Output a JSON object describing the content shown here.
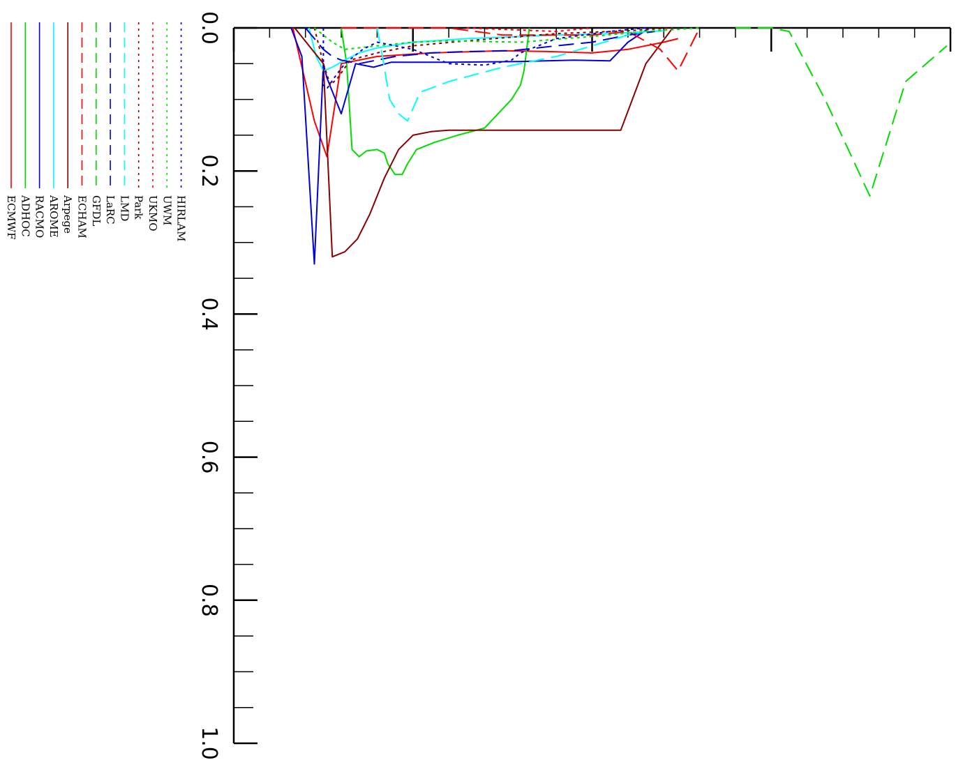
{
  "chart_data": {
    "type": "line",
    "title": "",
    "xlabel": "",
    "ylabel": "",
    "ylim": [
      0,
      1
    ],
    "xlim": [
      0,
      4
    ],
    "yticks": [
      {
        "value": 0.0,
        "label": "0.0"
      },
      {
        "value": 0.2,
        "label": "0.2"
      },
      {
        "value": 0.4,
        "label": "0.4"
      },
      {
        "value": 0.6,
        "label": "0.6"
      },
      {
        "value": 0.8,
        "label": "0.8"
      },
      {
        "value": 1.0,
        "label": "1.0"
      }
    ],
    "xticks_major": [
      0,
      1,
      2,
      3,
      4
    ],
    "grid": false,
    "legend_position": "left",
    "series": [
      {
        "name": "ECMWF",
        "color": "#ff0000",
        "dash": "solid",
        "x": [
          0.33,
          0.45,
          0.52,
          0.6,
          0.8,
          1.1,
          1.5,
          1.75,
          2.0,
          2.2,
          2.4,
          2.48
        ],
        "y": [
          0.0,
          0.13,
          0.18,
          0.05,
          0.04,
          0.035,
          0.032,
          0.033,
          0.035,
          0.03,
          0.02,
          0.015
        ]
      },
      {
        "name": "ADHOC",
        "color": "#00dd00",
        "dash": "solid",
        "x": [
          0.6,
          0.63,
          0.66,
          0.7,
          0.74,
          0.8,
          0.84,
          0.86,
          0.9,
          0.94,
          0.97,
          1.02,
          1.12,
          1.25,
          1.4,
          1.55,
          1.6,
          1.62,
          1.65
        ],
        "y": [
          0.0,
          0.05,
          0.17,
          0.18,
          0.172,
          0.17,
          0.175,
          0.19,
          0.205,
          0.205,
          0.19,
          0.17,
          0.16,
          0.15,
          0.14,
          0.1,
          0.08,
          0.06,
          0.0
        ]
      },
      {
        "name": "RACMO",
        "color": "#0000dd",
        "dash": "solid",
        "x": [
          0.32,
          0.38,
          0.45,
          0.5,
          0.52,
          0.6,
          0.68,
          0.78,
          0.88,
          1.2,
          1.6,
          1.9,
          2.1,
          2.2,
          2.32
        ],
        "y": [
          0.0,
          0.04,
          0.33,
          0.05,
          0.07,
          0.12,
          0.05,
          0.055,
          0.048,
          0.048,
          0.047,
          0.045,
          0.046,
          0.02,
          0.0
        ]
      },
      {
        "name": "AROME",
        "color": "#00ffff",
        "dash": "solid",
        "x": [
          0.42,
          0.46,
          0.5,
          0.55,
          0.62,
          0.7,
          0.8,
          1.0,
          1.3,
          1.8,
          2.1,
          2.4
        ],
        "y": [
          0.0,
          0.04,
          0.06,
          0.055,
          0.045,
          0.035,
          0.028,
          0.02,
          0.015,
          0.01,
          0.008,
          0.004
        ]
      },
      {
        "name": "Arpege",
        "color": "#880000",
        "dash": "solid",
        "x": [
          0.34,
          0.5,
          0.55,
          0.62,
          0.69,
          0.76,
          0.84,
          0.92,
          1.0,
          1.1,
          1.2,
          1.5,
          1.8,
          2.16,
          2.3,
          2.45
        ],
        "y": [
          0.0,
          0.05,
          0.32,
          0.313,
          0.295,
          0.26,
          0.21,
          0.17,
          0.15,
          0.145,
          0.143,
          0.143,
          0.143,
          0.143,
          0.05,
          0.0
        ]
      },
      {
        "name": "ECHAM",
        "color": "#ff0000",
        "dash": "dash",
        "x": [
          0.6,
          1.2,
          1.5,
          2.0,
          2.2,
          2.38,
          2.48,
          2.6
        ],
        "y": [
          0.0,
          0.0,
          0.01,
          0.01,
          0.005,
          0.03,
          0.06,
          0.0
        ]
      },
      {
        "name": "GFDL",
        "color": "#00dd00",
        "dash": "dash",
        "x": [
          2.8,
          3.0,
          3.1,
          3.3,
          3.55,
          3.75,
          3.98
        ],
        "y": [
          0.0,
          0.0,
          0.005,
          0.1,
          0.235,
          0.075,
          0.025
        ]
      },
      {
        "name": "LaRC",
        "color": "#0000dd",
        "dash": "dash",
        "x": [
          0.4,
          0.5,
          0.55,
          0.6,
          0.7,
          0.9,
          1.1,
          1.3,
          1.55,
          1.8,
          2.0,
          2.2,
          2.35
        ],
        "y": [
          0.0,
          0.03,
          0.04,
          0.045,
          0.05,
          0.04,
          0.035,
          0.033,
          0.032,
          0.025,
          0.02,
          0.01,
          0.005
        ]
      },
      {
        "name": "LMD",
        "color": "#00ffff",
        "dash": "dash",
        "x": [
          0.8,
          0.83,
          0.87,
          0.92,
          0.97,
          1.04,
          1.2,
          1.5,
          1.8,
          2.0,
          2.2,
          2.3
        ],
        "y": [
          0.0,
          0.04,
          0.1,
          0.12,
          0.13,
          0.09,
          0.075,
          0.055,
          0.04,
          0.025,
          0.01,
          0.005
        ]
      },
      {
        "name": "Park",
        "color": "#880000",
        "dash": "dot",
        "x": [
          0.45,
          0.5,
          0.54,
          0.58,
          0.65,
          0.8,
          1.0,
          1.3,
          1.8,
          2.2,
          2.45
        ],
        "y": [
          0.0,
          0.05,
          0.08,
          0.07,
          0.045,
          0.035,
          0.025,
          0.018,
          0.008,
          0.004,
          0.0
        ]
      },
      {
        "name": "UKMO",
        "color": "#ff0000",
        "dash": "dot",
        "x": [
          1.3,
          1.5,
          1.8,
          2.0
        ],
        "y": [
          0.0,
          0.002,
          0.005,
          0.0
        ]
      },
      {
        "name": "UWM",
        "color": "#00dd00",
        "dash": "dot",
        "x": [
          0.45,
          0.55,
          0.62,
          0.8,
          1.0,
          1.2,
          1.6,
          2.0,
          2.3,
          2.6
        ],
        "y": [
          0.0,
          0.02,
          0.03,
          0.025,
          0.02,
          0.018,
          0.02,
          0.012,
          0.005,
          0.0
        ]
      },
      {
        "name": "HIRLAM",
        "color": "#0000dd",
        "dash": "dot",
        "x": [
          0.5,
          0.5,
          0.52,
          0.56,
          0.62,
          0.72,
          0.8,
          1.0,
          1.2,
          1.4,
          1.55,
          1.6,
          1.8,
          2.1,
          2.3
        ],
        "y": [
          0.0,
          0.08,
          0.085,
          0.07,
          0.05,
          0.03,
          0.02,
          0.03,
          0.05,
          0.052,
          0.045,
          0.035,
          0.015,
          0.005,
          0.0
        ]
      }
    ]
  }
}
